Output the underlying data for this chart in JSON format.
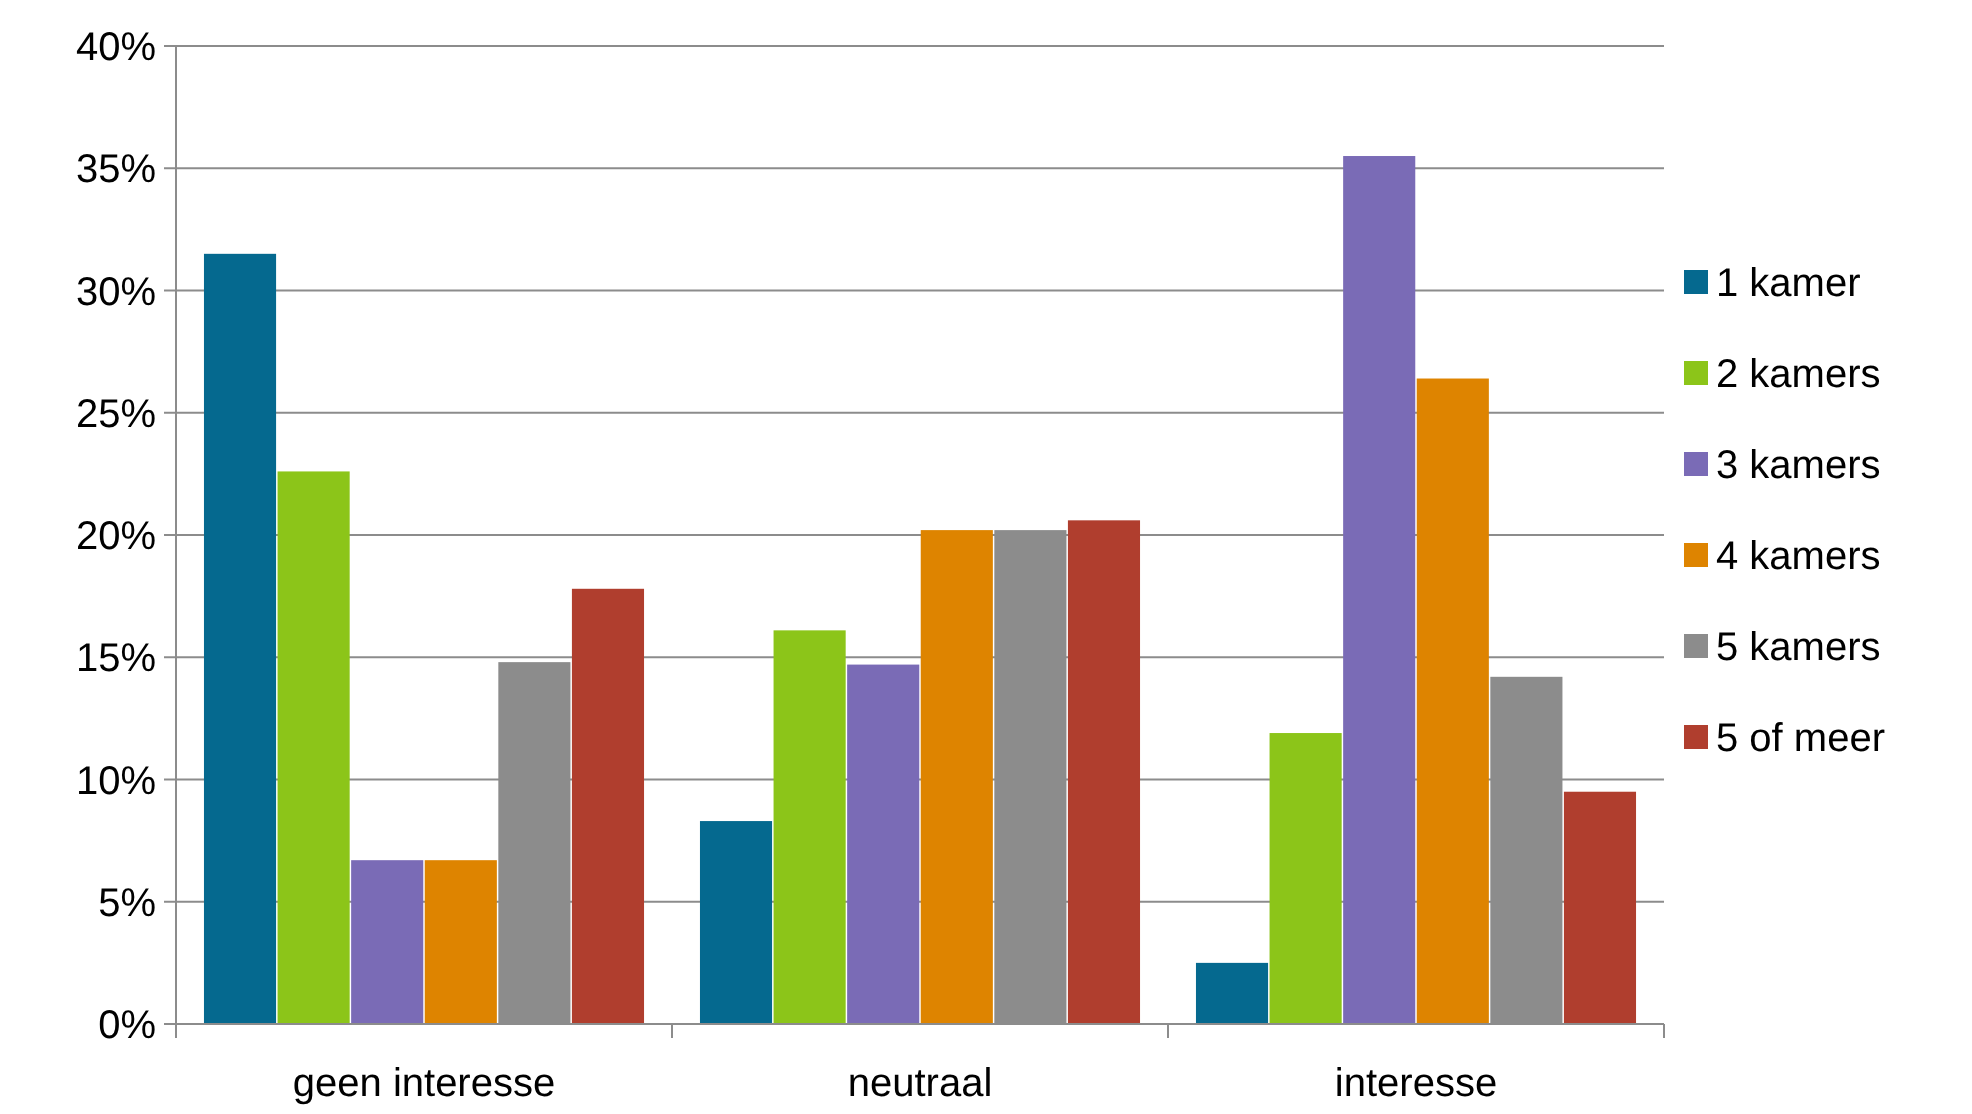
{
  "chart_data": {
    "type": "bar",
    "categories": [
      "geen interesse",
      "neutraal",
      "interesse"
    ],
    "series": [
      {
        "name": "1 kamer",
        "color": "#05698f",
        "values": [
          31.5,
          8.3,
          2.5
        ]
      },
      {
        "name": "2 kamers",
        "color": "#8cc519",
        "values": [
          22.6,
          16.1,
          11.9
        ]
      },
      {
        "name": "3 kamers",
        "color": "#7a6bb6",
        "values": [
          6.7,
          14.7,
          35.5
        ]
      },
      {
        "name": "4 kamers",
        "color": "#de8400",
        "values": [
          6.7,
          20.2,
          26.4
        ]
      },
      {
        "name": "5 kamers",
        "color": "#8c8c8c",
        "values": [
          14.8,
          20.2,
          14.2
        ]
      },
      {
        "name": "5 of meer",
        "color": "#b03e2e",
        "values": [
          17.8,
          20.6,
          9.5
        ]
      }
    ],
    "ylim": [
      0,
      40
    ],
    "yticks": [
      {
        "value": 0,
        "label": "0%"
      },
      {
        "value": 5,
        "label": "5%"
      },
      {
        "value": 10,
        "label": "10%"
      },
      {
        "value": 15,
        "label": "15%"
      },
      {
        "value": 20,
        "label": "20%"
      },
      {
        "value": 25,
        "label": "25%"
      },
      {
        "value": 30,
        "label": "30%"
      },
      {
        "value": 35,
        "label": "35%"
      },
      {
        "value": 40,
        "label": "40%"
      }
    ],
    "grid": "y",
    "legend": "right"
  }
}
